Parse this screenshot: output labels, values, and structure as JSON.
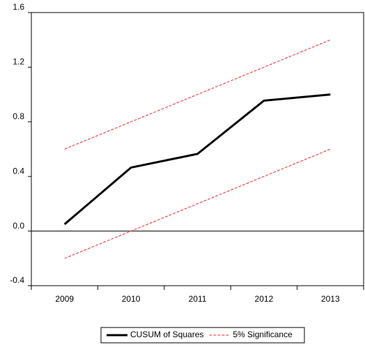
{
  "chart_data": {
    "type": "line",
    "categories": [
      "2009",
      "2010",
      "2011",
      "2012",
      "2013"
    ],
    "series": [
      {
        "name": "CUSUM of Squares",
        "color": "#000000",
        "values": [
          0.05,
          0.465,
          0.565,
          0.955,
          1.0
        ]
      },
      {
        "name": "5% Significance",
        "color": "#e8282a",
        "values": [
          0.6,
          0.8,
          1.0,
          1.2,
          1.4
        ]
      },
      {
        "color": "#e8282a",
        "values": [
          -0.2,
          0.0,
          0.2,
          0.4,
          0.6
        ]
      }
    ],
    "ylim": [
      -0.4,
      1.6
    ],
    "yticks": [
      -0.4,
      {
        "value": 0,
        "label": "0.0"
      },
      0.4,
      0.8,
      1.2,
      1.6
    ],
    "legend": "bottom"
  }
}
